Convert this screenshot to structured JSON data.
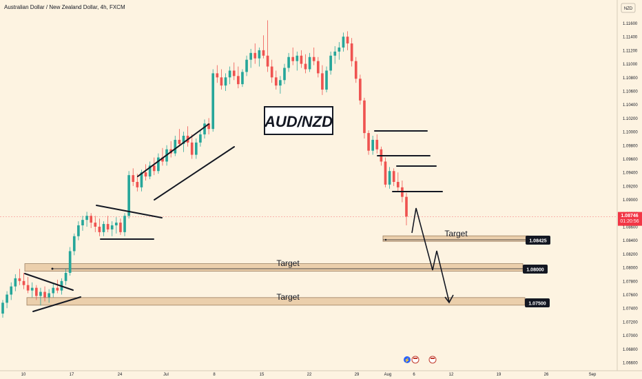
{
  "header": {
    "symbol_title": "Australian Dollar / New Zealand Dollar, 4h, FXCM"
  },
  "currency_badge": "NZD",
  "price_axis": {
    "ticks": [
      "1.11600",
      "1.11400",
      "1.11200",
      "1.11000",
      "1.10800",
      "1.10600",
      "1.10400",
      "1.10200",
      "1.10000",
      "1.09800",
      "1.09600",
      "1.09400",
      "1.09200",
      "1.09000",
      "1.08800",
      "1.08600",
      "1.08400",
      "1.08200",
      "1.08000",
      "1.07800",
      "1.07600",
      "1.07400",
      "1.07200",
      "1.07000",
      "1.06800",
      "1.06600"
    ],
    "current_price": "1.08746",
    "countdown": "01:20:56"
  },
  "time_axis": {
    "labels": [
      "10",
      "17",
      "24",
      "Jul",
      "8",
      "15",
      "22",
      "29",
      "Aug",
      "6",
      "12",
      "19",
      "26",
      "Sep"
    ]
  },
  "annotations": {
    "pair_label": "AUD/NZD",
    "target_labels": [
      "Target",
      "Target",
      "Target"
    ]
  },
  "levels": [
    {
      "price": "1.08425",
      "target_label": "Target"
    },
    {
      "price": "1.08000",
      "target_label": "Target"
    },
    {
      "price": "1.07500",
      "target_label": "Target"
    }
  ],
  "chart_data": {
    "type": "candlestick",
    "title": "Australian Dollar / New Zealand Dollar, 4h, FXCM",
    "y_range": [
      1.066,
      1.117
    ],
    "current_price": 1.08746,
    "target_prices": [
      1.08425,
      1.08,
      1.075
    ],
    "colors": {
      "bull": "#26a69a",
      "bear": "#ef5350",
      "current_price": "#f23645",
      "zone_fill": "#e9c9a3",
      "zone_border": "#8a6a4a",
      "background": "#fdf3e1"
    },
    "candles": [
      {
        "o": 1.0732,
        "h": 1.0752,
        "l": 1.0726,
        "c": 1.0748
      },
      {
        "o": 1.0748,
        "h": 1.0765,
        "l": 1.074,
        "c": 1.076
      },
      {
        "o": 1.076,
        "h": 1.0778,
        "l": 1.0752,
        "c": 1.0772
      },
      {
        "o": 1.0772,
        "h": 1.079,
        "l": 1.0765,
        "c": 1.0784
      },
      {
        "o": 1.0784,
        "h": 1.0798,
        "l": 1.0774,
        "c": 1.078
      },
      {
        "o": 1.078,
        "h": 1.0792,
        "l": 1.0768,
        "c": 1.0774
      },
      {
        "o": 1.0774,
        "h": 1.0786,
        "l": 1.0762,
        "c": 1.0766
      },
      {
        "o": 1.0766,
        "h": 1.0778,
        "l": 1.0756,
        "c": 1.077
      },
      {
        "o": 1.077,
        "h": 1.0774,
        "l": 1.0752,
        "c": 1.0758
      },
      {
        "o": 1.0758,
        "h": 1.077,
        "l": 1.0744,
        "c": 1.0764
      },
      {
        "o": 1.0764,
        "h": 1.0772,
        "l": 1.075,
        "c": 1.0756
      },
      {
        "o": 1.0756,
        "h": 1.0768,
        "l": 1.0748,
        "c": 1.0762
      },
      {
        "o": 1.0762,
        "h": 1.0776,
        "l": 1.0756,
        "c": 1.077
      },
      {
        "o": 1.077,
        "h": 1.0782,
        "l": 1.0762,
        "c": 1.0766
      },
      {
        "o": 1.0766,
        "h": 1.0784,
        "l": 1.076,
        "c": 1.078
      },
      {
        "o": 1.078,
        "h": 1.0798,
        "l": 1.0774,
        "c": 1.0792
      },
      {
        "o": 1.0792,
        "h": 1.083,
        "l": 1.0788,
        "c": 1.0824
      },
      {
        "o": 1.0824,
        "h": 1.085,
        "l": 1.0818,
        "c": 1.0846
      },
      {
        "o": 1.0846,
        "h": 1.0868,
        "l": 1.084,
        "c": 1.0862
      },
      {
        "o": 1.0862,
        "h": 1.0876,
        "l": 1.0854,
        "c": 1.087
      },
      {
        "o": 1.087,
        "h": 1.0882,
        "l": 1.086,
        "c": 1.0876
      },
      {
        "o": 1.0876,
        "h": 1.088,
        "l": 1.0858,
        "c": 1.0866
      },
      {
        "o": 1.0866,
        "h": 1.0876,
        "l": 1.0852,
        "c": 1.086
      },
      {
        "o": 1.086,
        "h": 1.0872,
        "l": 1.0846,
        "c": 1.0852
      },
      {
        "o": 1.0852,
        "h": 1.0868,
        "l": 1.0846,
        "c": 1.0864
      },
      {
        "o": 1.0864,
        "h": 1.0876,
        "l": 1.0852,
        "c": 1.0856
      },
      {
        "o": 1.0856,
        "h": 1.0868,
        "l": 1.0846,
        "c": 1.0862
      },
      {
        "o": 1.0862,
        "h": 1.0874,
        "l": 1.085,
        "c": 1.0866
      },
      {
        "o": 1.0866,
        "h": 1.0872,
        "l": 1.0848,
        "c": 1.0852
      },
      {
        "o": 1.0852,
        "h": 1.088,
        "l": 1.0846,
        "c": 1.0876
      },
      {
        "o": 1.0876,
        "h": 1.0942,
        "l": 1.0872,
        "c": 1.0936
      },
      {
        "o": 1.0936,
        "h": 1.0946,
        "l": 1.092,
        "c": 1.0926
      },
      {
        "o": 1.0926,
        "h": 1.0938,
        "l": 1.0912,
        "c": 1.0918
      },
      {
        "o": 1.0918,
        "h": 1.0944,
        "l": 1.0912,
        "c": 1.094
      },
      {
        "o": 1.094,
        "h": 1.0952,
        "l": 1.0928,
        "c": 1.0934
      },
      {
        "o": 1.0934,
        "h": 1.0956,
        "l": 1.093,
        "c": 1.095
      },
      {
        "o": 1.095,
        "h": 1.0962,
        "l": 1.0936,
        "c": 1.0942
      },
      {
        "o": 1.0942,
        "h": 1.0968,
        "l": 1.0938,
        "c": 1.0962
      },
      {
        "o": 1.0962,
        "h": 1.0976,
        "l": 1.095,
        "c": 1.0956
      },
      {
        "o": 1.0956,
        "h": 1.098,
        "l": 1.095,
        "c": 1.0974
      },
      {
        "o": 1.0974,
        "h": 1.0986,
        "l": 1.0962,
        "c": 1.0968
      },
      {
        "o": 1.0968,
        "h": 1.0994,
        "l": 1.0964,
        "c": 1.0988
      },
      {
        "o": 1.0988,
        "h": 1.1004,
        "l": 1.0978,
        "c": 1.0982
      },
      {
        "o": 1.0982,
        "h": 1.1,
        "l": 1.097,
        "c": 1.0994
      },
      {
        "o": 1.0994,
        "h": 1.1008,
        "l": 1.0978,
        "c": 1.0984
      },
      {
        "o": 1.0984,
        "h": 1.0996,
        "l": 1.096,
        "c": 1.0966
      },
      {
        "o": 1.0966,
        "h": 1.099,
        "l": 1.096,
        "c": 1.0984
      },
      {
        "o": 1.0984,
        "h": 1.1002,
        "l": 1.0978,
        "c": 1.0996
      },
      {
        "o": 1.0996,
        "h": 1.1018,
        "l": 1.099,
        "c": 1.1012
      },
      {
        "o": 1.1012,
        "h": 1.102,
        "l": 1.0996,
        "c": 1.1004
      },
      {
        "o": 1.1004,
        "h": 1.1092,
        "l": 1.1,
        "c": 1.1086
      },
      {
        "o": 1.1086,
        "h": 1.1098,
        "l": 1.1072,
        "c": 1.108
      },
      {
        "o": 1.108,
        "h": 1.1092,
        "l": 1.1062,
        "c": 1.1068
      },
      {
        "o": 1.1068,
        "h": 1.1086,
        "l": 1.106,
        "c": 1.108
      },
      {
        "o": 1.108,
        "h": 1.1096,
        "l": 1.107,
        "c": 1.109
      },
      {
        "o": 1.109,
        "h": 1.1102,
        "l": 1.1076,
        "c": 1.1082
      },
      {
        "o": 1.1082,
        "h": 1.1096,
        "l": 1.1064,
        "c": 1.107
      },
      {
        "o": 1.107,
        "h": 1.1092,
        "l": 1.1066,
        "c": 1.1088
      },
      {
        "o": 1.1088,
        "h": 1.1112,
        "l": 1.1082,
        "c": 1.1106
      },
      {
        "o": 1.1106,
        "h": 1.1122,
        "l": 1.1094,
        "c": 1.1116
      },
      {
        "o": 1.1116,
        "h": 1.113,
        "l": 1.11,
        "c": 1.1108
      },
      {
        "o": 1.1108,
        "h": 1.1124,
        "l": 1.1096,
        "c": 1.112
      },
      {
        "o": 1.112,
        "h": 1.1142,
        "l": 1.1108,
        "c": 1.1112
      },
      {
        "o": 1.1112,
        "h": 1.1164,
        "l": 1.1088,
        "c": 1.1096
      },
      {
        "o": 1.1096,
        "h": 1.1106,
        "l": 1.1072,
        "c": 1.108
      },
      {
        "o": 1.108,
        "h": 1.109,
        "l": 1.1062,
        "c": 1.1068
      },
      {
        "o": 1.1068,
        "h": 1.1082,
        "l": 1.1056,
        "c": 1.1076
      },
      {
        "o": 1.1076,
        "h": 1.11,
        "l": 1.107,
        "c": 1.1094
      },
      {
        "o": 1.1094,
        "h": 1.1116,
        "l": 1.1088,
        "c": 1.111
      },
      {
        "o": 1.111,
        "h": 1.1124,
        "l": 1.1098,
        "c": 1.1104
      },
      {
        "o": 1.1104,
        "h": 1.1118,
        "l": 1.109,
        "c": 1.1112
      },
      {
        "o": 1.1112,
        "h": 1.112,
        "l": 1.1094,
        "c": 1.11
      },
      {
        "o": 1.11,
        "h": 1.1114,
        "l": 1.1086,
        "c": 1.1092
      },
      {
        "o": 1.1092,
        "h": 1.1116,
        "l": 1.1088,
        "c": 1.111
      },
      {
        "o": 1.111,
        "h": 1.1124,
        "l": 1.1098,
        "c": 1.1104
      },
      {
        "o": 1.1104,
        "h": 1.111,
        "l": 1.108,
        "c": 1.1086
      },
      {
        "o": 1.1086,
        "h": 1.1098,
        "l": 1.1054,
        "c": 1.1062
      },
      {
        "o": 1.1062,
        "h": 1.1096,
        "l": 1.1058,
        "c": 1.109
      },
      {
        "o": 1.109,
        "h": 1.1118,
        "l": 1.1084,
        "c": 1.1112
      },
      {
        "o": 1.1112,
        "h": 1.1126,
        "l": 1.11,
        "c": 1.1118
      },
      {
        "o": 1.1118,
        "h": 1.1132,
        "l": 1.1106,
        "c": 1.1124
      },
      {
        "o": 1.1124,
        "h": 1.1146,
        "l": 1.1118,
        "c": 1.114
      },
      {
        "o": 1.114,
        "h": 1.1148,
        "l": 1.112,
        "c": 1.113
      },
      {
        "o": 1.113,
        "h": 1.1138,
        "l": 1.1096,
        "c": 1.1104
      },
      {
        "o": 1.1104,
        "h": 1.111,
        "l": 1.1072,
        "c": 1.1078
      },
      {
        "o": 1.1078,
        "h": 1.1084,
        "l": 1.104,
        "c": 1.1046
      },
      {
        "o": 1.1046,
        "h": 1.105,
        "l": 1.099,
        "c": 1.0998
      },
      {
        "o": 1.0998,
        "h": 1.1002,
        "l": 1.0966,
        "c": 1.0972
      },
      {
        "o": 1.0972,
        "h": 1.0994,
        "l": 1.0966,
        "c": 1.0988
      },
      {
        "o": 1.0988,
        "h": 1.0996,
        "l": 1.0968,
        "c": 1.0974
      },
      {
        "o": 1.0974,
        "h": 1.0978,
        "l": 1.095,
        "c": 1.0956
      },
      {
        "o": 1.0956,
        "h": 1.0962,
        "l": 1.0918,
        "c": 1.0922
      },
      {
        "o": 1.0922,
        "h": 1.0948,
        "l": 1.0916,
        "c": 1.0942
      },
      {
        "o": 1.0942,
        "h": 1.0946,
        "l": 1.092,
        "c": 1.0926
      },
      {
        "o": 1.0926,
        "h": 1.094,
        "l": 1.0912,
        "c": 1.0918
      },
      {
        "o": 1.0918,
        "h": 1.0928,
        "l": 1.0896,
        "c": 1.0904
      },
      {
        "o": 1.0904,
        "h": 1.091,
        "l": 1.0862,
        "c": 1.0875
      }
    ]
  }
}
